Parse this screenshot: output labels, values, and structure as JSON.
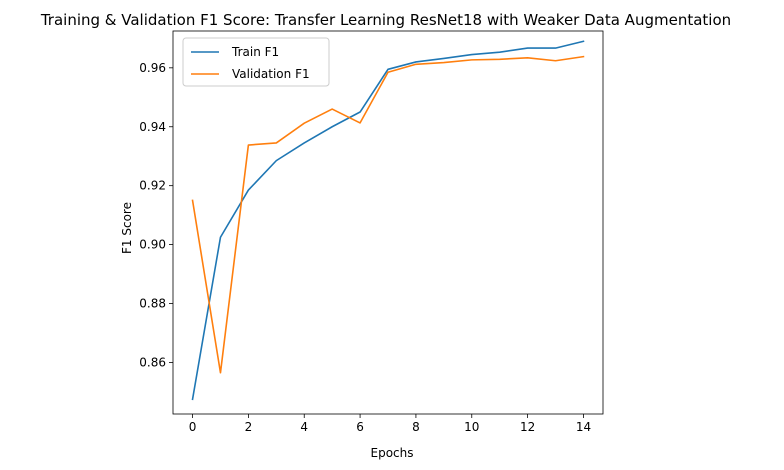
{
  "chart_data": {
    "type": "line",
    "title": "Training & Validation F1 Score: Transfer Learning ResNet18 with Weaker Data Augmentation",
    "xlabel": "Epochs",
    "ylabel": "F1 Score",
    "x": [
      0,
      1,
      2,
      3,
      4,
      5,
      6,
      7,
      8,
      9,
      10,
      11,
      12,
      13,
      14
    ],
    "xlim": [
      -0.7,
      14.7
    ],
    "ylim": [
      0.8425,
      0.9725
    ],
    "xticks": [
      0,
      2,
      4,
      6,
      8,
      10,
      12,
      14
    ],
    "yticks": [
      0.86,
      0.88,
      0.9,
      0.92,
      0.94,
      0.96
    ],
    "grid": false,
    "legend_position": "top-left",
    "series": [
      {
        "name": "Train F1",
        "color": "#1f77b4",
        "values": [
          0.8475,
          0.9025,
          0.9185,
          0.9285,
          0.9345,
          0.94,
          0.945,
          0.9595,
          0.962,
          0.9632,
          0.9645,
          0.9653,
          0.9667,
          0.9667,
          0.969
        ]
      },
      {
        "name": "Validation F1",
        "color": "#ff7f0e",
        "values": [
          0.915,
          0.8565,
          0.9338,
          0.9345,
          0.9412,
          0.946,
          0.9413,
          0.9585,
          0.9612,
          0.9618,
          0.9627,
          0.9629,
          0.9634,
          0.9624,
          0.9638
        ]
      }
    ]
  }
}
